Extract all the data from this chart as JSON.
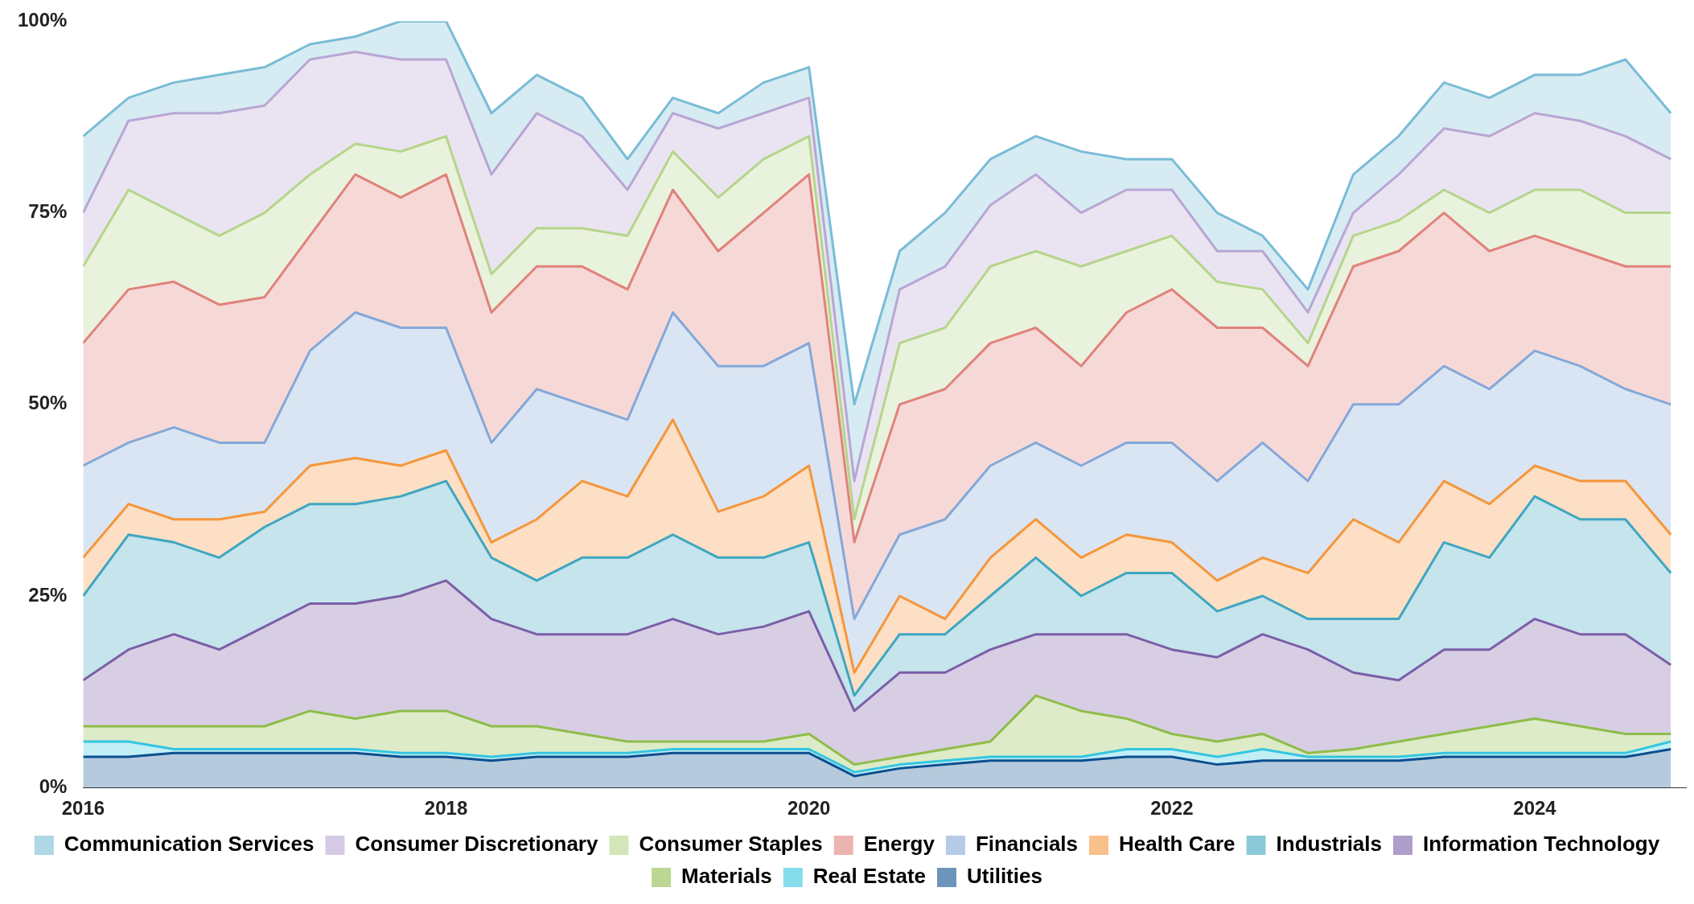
{
  "chart_data": {
    "type": "area",
    "stacked": true,
    "legend": "bottom",
    "grid": false,
    "marker": "none",
    "line_style": "solid",
    "x": [
      "2016-01",
      "2016-04",
      "2016-07",
      "2016-10",
      "2017-01",
      "2017-04",
      "2017-07",
      "2017-10",
      "2018-01",
      "2018-04",
      "2018-07",
      "2018-10",
      "2019-01",
      "2019-04",
      "2019-07",
      "2019-10",
      "2020-01",
      "2020-04",
      "2020-07",
      "2020-10",
      "2021-01",
      "2021-04",
      "2021-07",
      "2021-10",
      "2022-01",
      "2022-04",
      "2022-07",
      "2022-10",
      "2023-01",
      "2023-04",
      "2023-07",
      "2023-10",
      "2024-01",
      "2024-04",
      "2024-07",
      "2024-10"
    ],
    "xlim": [
      "2016",
      "2024-11"
    ],
    "xticks": [
      "2016",
      "2018",
      "2020",
      "2022",
      "2024"
    ],
    "ylim": [
      0,
      100
    ],
    "yticks": [
      {
        "value": 0,
        "label": "0%"
      },
      {
        "value": 25,
        "label": "25%"
      },
      {
        "value": 50,
        "label": "50%"
      },
      {
        "value": 75,
        "label": "75%"
      },
      {
        "value": 100,
        "label": "100%"
      }
    ],
    "series": [
      {
        "name": "Utilities",
        "color": "#0b4f8f",
        "values": [
          4,
          4,
          4.5,
          4.5,
          4.5,
          4.5,
          4.5,
          4,
          4,
          3.5,
          4,
          4,
          4,
          4.5,
          4.5,
          4.5,
          4.5,
          1.5,
          2.5,
          3,
          3.5,
          3.5,
          3.5,
          4,
          4,
          3,
          3.5,
          3.5,
          3.5,
          3.5,
          4,
          4,
          4,
          4,
          4,
          5
        ]
      },
      {
        "name": "Real Estate",
        "color": "#34c6e0",
        "values": [
          2,
          2,
          0.5,
          0.5,
          0.5,
          0.5,
          0.5,
          0.5,
          0.5,
          0.5,
          0.5,
          0.5,
          0.5,
          0.5,
          0.5,
          0.5,
          0.5,
          0.5,
          0.5,
          0.5,
          0.5,
          0.5,
          0.5,
          1,
          1,
          1,
          1.5,
          0.5,
          0.5,
          0.5,
          0.5,
          0.5,
          0.5,
          0.5,
          0.5,
          1
        ]
      },
      {
        "name": "Materials",
        "color": "#8fbc4a",
        "values": [
          2,
          2,
          3,
          3,
          3,
          5,
          4,
          5.5,
          5.5,
          4,
          3.5,
          2.5,
          1.5,
          1,
          1,
          1,
          2,
          1,
          1,
          1.5,
          2,
          8,
          6,
          4,
          2,
          2,
          2,
          0.5,
          1,
          2,
          2.5,
          3.5,
          4.5,
          3.5,
          2.5,
          1
        ]
      },
      {
        "name": "Information Technology",
        "color": "#7b5ea7",
        "values": [
          6,
          10,
          12,
          10,
          13,
          14,
          15,
          15,
          17,
          14,
          12,
          13,
          14,
          16,
          14,
          15,
          16,
          7,
          11,
          10,
          12,
          8,
          10,
          11,
          11,
          11,
          13,
          13.5,
          10,
          8,
          11,
          10,
          13,
          12,
          13,
          9
        ]
      },
      {
        "name": "Industrials",
        "color": "#3fa6c0",
        "values": [
          11,
          15,
          12,
          12,
          13,
          13,
          13,
          13,
          13,
          8,
          7,
          10,
          10,
          11,
          10,
          9,
          9,
          2,
          5,
          5,
          7,
          10,
          5,
          8,
          10,
          6,
          5,
          4,
          7,
          8,
          14,
          12,
          16,
          15,
          15,
          12
        ]
      },
      {
        "name": "Health Care",
        "color": "#f5963a",
        "values": [
          5,
          4,
          3,
          5,
          2,
          5,
          6,
          4,
          4,
          2,
          8,
          10,
          8,
          15,
          6,
          8,
          10,
          3,
          5,
          2,
          5,
          5,
          5,
          5,
          4,
          4,
          5,
          6,
          13,
          10,
          8,
          7,
          4,
          5,
          5,
          5
        ]
      },
      {
        "name": "Financials",
        "color": "#84a8d8",
        "values": [
          12,
          8,
          12,
          10,
          9,
          15,
          19,
          18,
          16,
          13,
          17,
          10,
          10,
          14,
          19,
          17,
          16,
          7,
          8,
          13,
          12,
          10,
          12,
          12,
          13,
          13,
          15,
          12,
          15,
          18,
          15,
          15,
          15,
          15,
          12,
          17
        ]
      },
      {
        "name": "Energy",
        "color": "#e0827c",
        "values": [
          16,
          20,
          19,
          18,
          19,
          15,
          18,
          17,
          20,
          17,
          16,
          18,
          17,
          16,
          15,
          20,
          22,
          10,
          17,
          17,
          16,
          15,
          13,
          17,
          20,
          20,
          15,
          15,
          18,
          20,
          20,
          18,
          15,
          15,
          16,
          18
        ]
      },
      {
        "name": "Consumer Staples",
        "color": "#b5d58a",
        "values": [
          10,
          13,
          9,
          9,
          11,
          8,
          4,
          6,
          5,
          5,
          5,
          5,
          7,
          5,
          7,
          7,
          5,
          3,
          8,
          8,
          10,
          10,
          13,
          8,
          7,
          6,
          5,
          3,
          4,
          4,
          3,
          5,
          6,
          8,
          7,
          7
        ]
      },
      {
        "name": "Consumer Discretionary",
        "color": "#b8a6d4",
        "values": [
          7,
          9,
          13,
          16,
          14,
          15,
          12,
          12,
          10,
          13,
          15,
          12,
          6,
          5,
          9,
          6,
          5,
          5,
          7,
          8,
          8,
          10,
          7,
          8,
          6,
          4,
          5,
          4,
          3,
          6,
          8,
          10,
          10,
          9,
          10,
          7
        ]
      },
      {
        "name": "Communication Services",
        "color": "#79bcd6",
        "values": [
          10,
          3,
          4,
          5,
          5,
          2,
          2,
          5,
          5,
          8,
          5,
          5,
          4,
          2,
          2,
          4,
          4,
          10,
          5,
          7,
          6,
          5,
          8,
          4,
          4,
          5,
          2,
          3,
          5,
          5,
          6,
          5,
          5,
          6,
          10,
          6
        ]
      }
    ]
  }
}
